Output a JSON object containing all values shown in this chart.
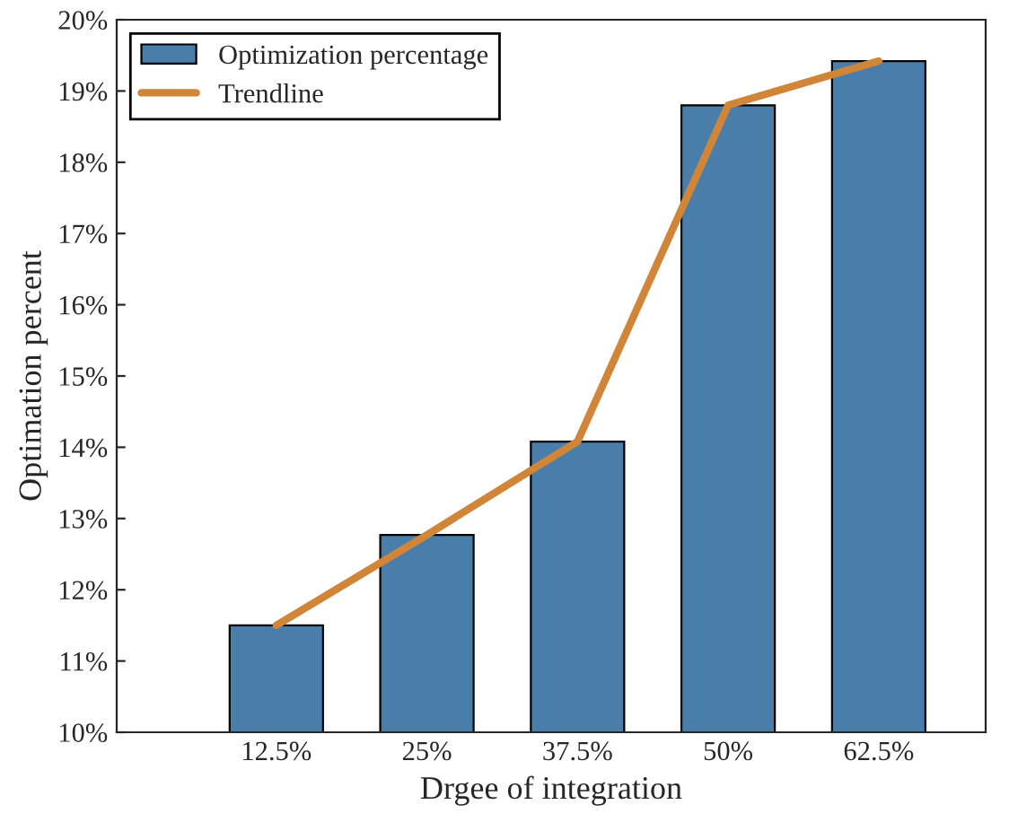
{
  "chart_data": {
    "type": "bar",
    "xlabel": "Drgee of integration",
    "ylabel": "Optimation percent",
    "categories": [
      "12.5%",
      "25%",
      "37.5%",
      "50%",
      "62.5%"
    ],
    "series": [
      {
        "name": "Optimization percentage",
        "color": "#4a7eaa",
        "values": [
          11.5,
          12.77,
          14.08,
          18.8,
          19.42
        ]
      },
      {
        "name": "Trendline",
        "type": "line",
        "color": "#d08538",
        "values": [
          11.5,
          12.77,
          14.08,
          18.8,
          19.42
        ]
      }
    ],
    "ylim": [
      10,
      20
    ],
    "yticks": [
      {
        "value": 10,
        "label": "10%"
      },
      {
        "value": 11,
        "label": "11%"
      },
      {
        "value": 12,
        "label": "12%"
      },
      {
        "value": 13,
        "label": "13%"
      },
      {
        "value": 14,
        "label": "14%"
      },
      {
        "value": 15,
        "label": "15%"
      },
      {
        "value": 16,
        "label": "16%"
      },
      {
        "value": 17,
        "label": "17%"
      },
      {
        "value": 18,
        "label": "18%"
      },
      {
        "value": 19,
        "label": "19%"
      },
      {
        "value": 20,
        "label": "20%"
      }
    ],
    "legend": "top left",
    "grid": false
  }
}
